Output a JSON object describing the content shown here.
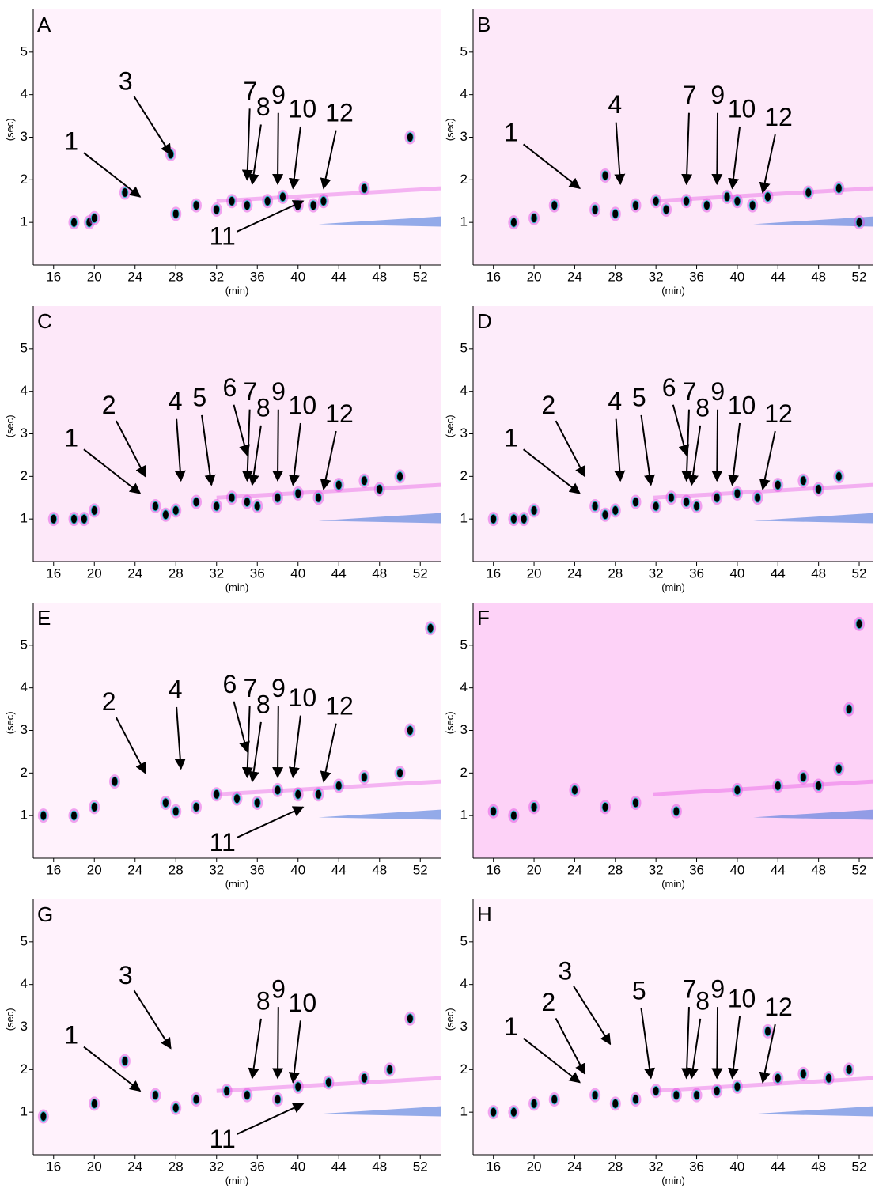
{
  "chart_data": [
    {
      "type": "contour",
      "panel_label": "A",
      "xlabel": "(min)",
      "ylabel": "(sec)",
      "background": "#fff2fc",
      "spot_color": "#000000",
      "xlim": [
        14,
        54
      ],
      "ylim": [
        0,
        6
      ],
      "xticks": [
        16,
        20,
        24,
        28,
        32,
        36,
        40,
        44,
        48,
        52
      ],
      "yticks": [
        1,
        2,
        3,
        4,
        5
      ],
      "spots": {
        "x": [
          18,
          19.5,
          20,
          23,
          27.5,
          28,
          30,
          32,
          33.5,
          35,
          37,
          38.5,
          40,
          41.5,
          42.5,
          46.5,
          51
        ],
        "y": [
          1.0,
          1.0,
          1.1,
          1.7,
          2.6,
          1.2,
          1.4,
          1.3,
          1.5,
          1.4,
          1.5,
          1.6,
          1.4,
          1.4,
          1.5,
          1.8,
          3.0
        ]
      },
      "annotations": [
        {
          "label": "1",
          "x": 24.5,
          "y": 1.6
        },
        {
          "label": "3",
          "x": 27.5,
          "y": 2.6
        },
        {
          "label": "7",
          "x": 35,
          "y": 2.0
        },
        {
          "label": "8",
          "x": 35.5,
          "y": 1.9
        },
        {
          "label": "9",
          "x": 38,
          "y": 1.9
        },
        {
          "label": "10",
          "x": 39.5,
          "y": 1.8
        },
        {
          "label": "12",
          "x": 42.5,
          "y": 1.8
        },
        {
          "label": "11",
          "x": 40.5,
          "y": 1.5
        }
      ]
    },
    {
      "type": "contour",
      "panel_label": "B",
      "xlabel": "(min)",
      "ylabel": "(sec)",
      "background": "#fde8f9",
      "spot_color": "#000000",
      "xlim": [
        14,
        53.4
      ],
      "ylim": [
        0,
        6
      ],
      "xticks": [
        16,
        20,
        24,
        28,
        32,
        36,
        40,
        44,
        48,
        52
      ],
      "yticks": [
        1,
        2,
        3,
        4,
        5
      ],
      "spots": {
        "x": [
          18,
          20,
          22,
          26,
          27,
          28,
          30,
          32,
          33,
          35,
          37,
          39,
          40,
          41.5,
          43,
          47,
          50,
          52
        ],
        "y": [
          1.0,
          1.1,
          1.4,
          1.3,
          2.1,
          1.2,
          1.4,
          1.5,
          1.3,
          1.5,
          1.4,
          1.6,
          1.5,
          1.4,
          1.6,
          1.7,
          1.8,
          1.0
        ]
      },
      "annotations": [
        {
          "label": "1",
          "x": 24.5,
          "y": 1.8
        },
        {
          "label": "4",
          "x": 28.5,
          "y": 1.9
        },
        {
          "label": "7",
          "x": 35,
          "y": 1.9
        },
        {
          "label": "9",
          "x": 38,
          "y": 1.9
        },
        {
          "label": "10",
          "x": 39.5,
          "y": 1.8
        },
        {
          "label": "12",
          "x": 42.5,
          "y": 1.7
        }
      ]
    },
    {
      "type": "contour",
      "panel_label": "C",
      "xlabel": "(min)",
      "ylabel": "(sec)",
      "background": "#fde8f9",
      "spot_color": "#000000",
      "xlim": [
        14,
        54
      ],
      "ylim": [
        0,
        6
      ],
      "xticks": [
        16,
        20,
        24,
        28,
        32,
        36,
        40,
        44,
        48,
        52
      ],
      "yticks": [
        1,
        2,
        3,
        4,
        5
      ],
      "spots": {
        "x": [
          16,
          18,
          19,
          20,
          26,
          27,
          28,
          30,
          32,
          33.5,
          35,
          36,
          38,
          40,
          42,
          44,
          46.5,
          48,
          50
        ],
        "y": [
          1.0,
          1.0,
          1.0,
          1.2,
          1.3,
          1.1,
          1.2,
          1.4,
          1.3,
          1.5,
          1.4,
          1.3,
          1.5,
          1.6,
          1.5,
          1.8,
          1.9,
          1.7,
          2.0
        ]
      },
      "annotations": [
        {
          "label": "1",
          "x": 24.5,
          "y": 1.6
        },
        {
          "label": "2",
          "x": 25,
          "y": 2.0
        },
        {
          "label": "4",
          "x": 28.5,
          "y": 1.9
        },
        {
          "label": "5",
          "x": 31.5,
          "y": 1.8
        },
        {
          "label": "6",
          "x": 35,
          "y": 2.5
        },
        {
          "label": "7",
          "x": 35,
          "y": 1.9
        },
        {
          "label": "8",
          "x": 35.5,
          "y": 1.8
        },
        {
          "label": "9",
          "x": 38,
          "y": 1.9
        },
        {
          "label": "10",
          "x": 39.5,
          "y": 1.8
        },
        {
          "label": "12",
          "x": 42.5,
          "y": 1.7
        }
      ]
    },
    {
      "type": "contour",
      "panel_label": "D",
      "xlabel": "(min)",
      "ylabel": "(sec)",
      "background": "#fdecfa",
      "spot_color": "#000000",
      "xlim": [
        14,
        53.4
      ],
      "ylim": [
        0,
        6
      ],
      "xticks": [
        16,
        20,
        24,
        28,
        32,
        36,
        40,
        44,
        48,
        52
      ],
      "yticks": [
        1,
        2,
        3,
        4,
        5
      ],
      "spots": {
        "x": [
          16,
          18,
          19,
          20,
          26,
          27,
          28,
          30,
          32,
          33.5,
          35,
          36,
          38,
          40,
          42,
          44,
          46.5,
          48,
          50
        ],
        "y": [
          1.0,
          1.0,
          1.0,
          1.2,
          1.3,
          1.1,
          1.2,
          1.4,
          1.3,
          1.5,
          1.4,
          1.3,
          1.5,
          1.6,
          1.5,
          1.8,
          1.9,
          1.7,
          2.0
        ]
      },
      "annotations": [
        {
          "label": "1",
          "x": 24.5,
          "y": 1.6
        },
        {
          "label": "2",
          "x": 25,
          "y": 2.0
        },
        {
          "label": "4",
          "x": 28.5,
          "y": 1.9
        },
        {
          "label": "5",
          "x": 31.5,
          "y": 1.8
        },
        {
          "label": "6",
          "x": 35,
          "y": 2.5
        },
        {
          "label": "7",
          "x": 35,
          "y": 1.9
        },
        {
          "label": "8",
          "x": 35.5,
          "y": 1.8
        },
        {
          "label": "9",
          "x": 38,
          "y": 1.9
        },
        {
          "label": "10",
          "x": 39.5,
          "y": 1.8
        },
        {
          "label": "12",
          "x": 42.5,
          "y": 1.7
        }
      ]
    },
    {
      "type": "contour",
      "panel_label": "E",
      "xlabel": "(min)",
      "ylabel": "(sec)",
      "background": "#fff2fc",
      "spot_color": "#000000",
      "xlim": [
        14,
        54
      ],
      "ylim": [
        0,
        6
      ],
      "xticks": [
        16,
        20,
        24,
        28,
        32,
        36,
        40,
        44,
        48,
        52
      ],
      "yticks": [
        1,
        2,
        3,
        4,
        5
      ],
      "spots": {
        "x": [
          15,
          18,
          20,
          22,
          27,
          28,
          30,
          32,
          34,
          36,
          38,
          40,
          42,
          44,
          46.5,
          50,
          51,
          53
        ],
        "y": [
          1.0,
          1.0,
          1.2,
          1.8,
          1.3,
          1.1,
          1.2,
          1.5,
          1.4,
          1.3,
          1.6,
          1.5,
          1.5,
          1.7,
          1.9,
          2.0,
          3.0,
          5.4
        ]
      },
      "annotations": [
        {
          "label": "2",
          "x": 25,
          "y": 2.0
        },
        {
          "label": "4",
          "x": 28.5,
          "y": 2.1
        },
        {
          "label": "6",
          "x": 35,
          "y": 2.5
        },
        {
          "label": "7",
          "x": 35,
          "y": 1.9
        },
        {
          "label": "8",
          "x": 35.5,
          "y": 1.8
        },
        {
          "label": "9",
          "x": 38,
          "y": 1.9
        },
        {
          "label": "10",
          "x": 39.5,
          "y": 1.9
        },
        {
          "label": "12",
          "x": 42.5,
          "y": 1.8
        },
        {
          "label": "11",
          "x": 40.5,
          "y": 1.2
        }
      ]
    },
    {
      "type": "contour",
      "panel_label": "F",
      "xlabel": "(min)",
      "ylabel": "(sec)",
      "background": "#fdd2f7",
      "spot_color": "#000000",
      "xlim": [
        14,
        53.4
      ],
      "ylim": [
        0,
        6
      ],
      "xticks": [
        16,
        20,
        24,
        28,
        32,
        36,
        40,
        44,
        48,
        52
      ],
      "yticks": [
        1,
        2,
        3,
        4,
        5
      ],
      "spots": {
        "x": [
          16,
          18,
          20,
          24,
          27,
          30,
          34,
          40,
          44,
          46.5,
          48,
          50,
          51,
          52
        ],
        "y": [
          1.1,
          1.0,
          1.2,
          1.6,
          1.2,
          1.3,
          1.1,
          1.6,
          1.7,
          1.9,
          1.7,
          2.1,
          3.5,
          5.5
        ]
      },
      "annotations": []
    },
    {
      "type": "contour",
      "panel_label": "G",
      "xlabel": "(min)",
      "ylabel": "(sec)",
      "background": "#fff2fc",
      "spot_color": "#000000",
      "xlim": [
        14,
        54
      ],
      "ylim": [
        0,
        6
      ],
      "xticks": [
        16,
        20,
        24,
        28,
        32,
        36,
        40,
        44,
        48,
        52
      ],
      "yticks": [
        1,
        2,
        3,
        4,
        5
      ],
      "spots": {
        "x": [
          15,
          20,
          23,
          26,
          28,
          30,
          33,
          35,
          38,
          40,
          43,
          46.5,
          49,
          51
        ],
        "y": [
          0.9,
          1.2,
          2.2,
          1.4,
          1.1,
          1.3,
          1.5,
          1.4,
          1.3,
          1.6,
          1.7,
          1.8,
          2.0,
          3.2
        ]
      },
      "annotations": [
        {
          "label": "1",
          "x": 24.5,
          "y": 1.5
        },
        {
          "label": "3",
          "x": 27.5,
          "y": 2.5
        },
        {
          "label": "8",
          "x": 35.5,
          "y": 1.8
        },
        {
          "label": "9",
          "x": 38,
          "y": 1.8
        },
        {
          "label": "10",
          "x": 39.5,
          "y": 1.7
        },
        {
          "label": "11",
          "x": 40.5,
          "y": 1.2
        }
      ]
    },
    {
      "type": "contour",
      "panel_label": "H",
      "xlabel": "(min)",
      "ylabel": "(sec)",
      "background": "#fff2fc",
      "spot_color": "#000000",
      "xlim": [
        14,
        53.4
      ],
      "ylim": [
        0,
        6
      ],
      "xticks": [
        16,
        20,
        24,
        28,
        32,
        36,
        40,
        44,
        48,
        52
      ],
      "yticks": [
        1,
        2,
        3,
        4,
        5
      ],
      "spots": {
        "x": [
          16,
          18,
          20,
          22,
          26,
          28,
          30,
          32,
          34,
          36,
          38,
          40,
          43,
          44,
          46.5,
          49,
          51
        ],
        "y": [
          1.0,
          1.0,
          1.2,
          1.3,
          1.4,
          1.2,
          1.3,
          1.5,
          1.4,
          1.4,
          1.5,
          1.6,
          2.9,
          1.8,
          1.9,
          1.8,
          2.0
        ]
      },
      "annotations": [
        {
          "label": "1",
          "x": 24.5,
          "y": 1.7
        },
        {
          "label": "2",
          "x": 25,
          "y": 1.9
        },
        {
          "label": "3",
          "x": 27.5,
          "y": 2.6
        },
        {
          "label": "5",
          "x": 31.5,
          "y": 1.8
        },
        {
          "label": "7",
          "x": 35,
          "y": 1.8
        },
        {
          "label": "8",
          "x": 35.5,
          "y": 1.8
        },
        {
          "label": "9",
          "x": 38,
          "y": 1.8
        },
        {
          "label": "10",
          "x": 39.5,
          "y": 1.8
        },
        {
          "label": "12",
          "x": 42.5,
          "y": 1.7
        }
      ]
    }
  ]
}
